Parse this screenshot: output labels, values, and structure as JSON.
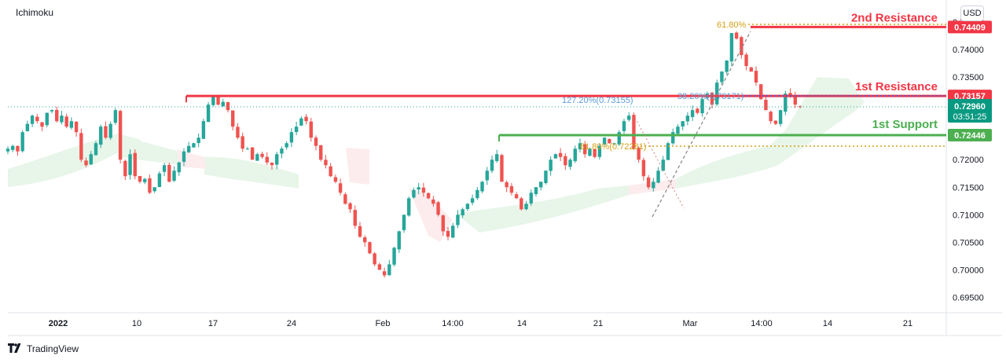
{
  "indicator": "Ichimoku",
  "currency": "USD",
  "brand": "TradingView",
  "levels": {
    "second_resistance": {
      "label": "2nd Resistance",
      "value": "0.74409",
      "color": "#f23645"
    },
    "first_resistance": {
      "label": "1st Resistance",
      "value": "0.73157",
      "color": "#f23645"
    },
    "first_support": {
      "label": "1st Support",
      "value": "0.72446",
      "color": "#4caf50"
    },
    "current": {
      "price": "0.72960",
      "countdown": "03:51:25",
      "color": "#089981"
    }
  },
  "fib_labels": {
    "fib_618_top": "61.80%",
    "fib_1272": "127.20%(0.73155)",
    "fib_382": "38.20%(0.73171)",
    "fib_618_low": "61.80%(0.72281)"
  },
  "colors": {
    "up": "#26a69a",
    "down": "#ef5350",
    "cloud_green": "#e8f5e9",
    "cloud_red": "#fdecee",
    "fib_gold": "#d4a017",
    "fib_blue": "#2962ff"
  },
  "chart_data": {
    "type": "candlestick",
    "symbol_indicator": "Ichimoku",
    "y_axis": {
      "ticks": [
        "0.74500",
        "0.74000",
        "0.73500",
        "0.73000",
        "0.72500",
        "0.72000",
        "0.71500",
        "0.71000",
        "0.70500",
        "0.70000",
        "0.69500"
      ],
      "ylim": [
        0.6925,
        0.747
      ]
    },
    "x_axis": {
      "ticks": [
        "2022",
        "10",
        "17",
        "24",
        "Feb",
        "14:00",
        "14",
        "21",
        "Mar",
        "14:00",
        "14",
        "21"
      ]
    },
    "horizontal_levels": [
      {
        "name": "2nd Resistance",
        "value": 0.74409
      },
      {
        "name": "1st Resistance",
        "value": 0.73157
      },
      {
        "name": "1st Support",
        "value": 0.72446
      }
    ],
    "current_price": 0.7296,
    "closes": [
      0.722,
      0.7225,
      0.7215,
      0.725,
      0.7265,
      0.728,
      0.727,
      0.726,
      0.7285,
      0.729,
      0.727,
      0.728,
      0.726,
      0.727,
      0.725,
      0.72,
      0.719,
      0.721,
      0.723,
      0.726,
      0.724,
      0.7265,
      0.729,
      0.72,
      0.717,
      0.721,
      0.717,
      0.716,
      0.7165,
      0.714,
      0.715,
      0.7175,
      0.719,
      0.716,
      0.718,
      0.7195,
      0.7215,
      0.7225,
      0.723,
      0.724,
      0.727,
      0.73,
      0.7315,
      0.73,
      0.7305,
      0.729,
      0.726,
      0.724,
      0.722,
      0.722,
      0.72,
      0.721,
      0.7205,
      0.7195,
      0.719,
      0.721,
      0.722,
      0.723,
      0.725,
      0.726,
      0.7275,
      0.727,
      0.724,
      0.7225,
      0.72,
      0.719,
      0.717,
      0.716,
      0.714,
      0.712,
      0.711,
      0.708,
      0.706,
      0.705,
      0.703,
      0.701,
      0.7,
      0.699,
      0.701,
      0.704,
      0.707,
      0.71,
      0.713,
      0.7145,
      0.715,
      0.714,
      0.713,
      0.712,
      0.71,
      0.707,
      0.706,
      0.708,
      0.71,
      0.711,
      0.712,
      0.713,
      0.7145,
      0.716,
      0.718,
      0.72,
      0.721,
      0.716,
      0.715,
      0.714,
      0.713,
      0.711,
      0.712,
      0.714,
      0.715,
      0.716,
      0.718,
      0.72,
      0.721,
      0.7205,
      0.719,
      0.72,
      0.722,
      0.723,
      0.721,
      0.722,
      0.7205,
      0.7225,
      0.724,
      0.723,
      0.723,
      0.725,
      0.727,
      0.728,
      0.722,
      0.72,
      0.717,
      0.715,
      0.716,
      0.718,
      0.72,
      0.723,
      0.725,
      0.726,
      0.727,
      0.728,
      0.729,
      0.7285,
      0.731,
      0.732,
      0.73,
      0.734,
      0.736,
      0.738,
      0.743,
      0.742,
      0.739,
      0.737,
      0.736,
      0.734,
      0.731,
      0.729,
      0.727,
      0.7265,
      0.729,
      0.732,
      0.7315,
      0.73,
      0.7296
    ]
  }
}
